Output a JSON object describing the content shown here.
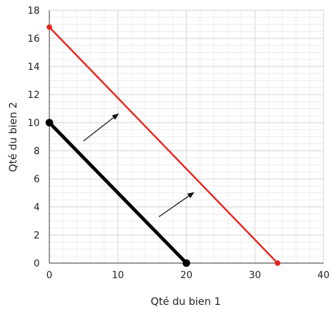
{
  "chart_data": {
    "type": "line",
    "xlabel": "Qté du bien 1",
    "ylabel": "Qté du bien 2",
    "xlim": [
      0,
      40
    ],
    "ylim": [
      0,
      18
    ],
    "x_ticks": [
      0,
      10,
      20,
      30,
      40
    ],
    "y_ticks": [
      0,
      2,
      4,
      6,
      8,
      10,
      12,
      14,
      16,
      18
    ],
    "grid": true,
    "series": [
      {
        "color": "#000000",
        "points": [
          [
            0,
            10
          ],
          [
            20,
            0
          ]
        ]
      },
      {
        "color": "#e8231c",
        "points": [
          [
            0,
            16.8
          ],
          [
            33.3,
            0
          ]
        ]
      }
    ],
    "annotations": [
      {
        "type": "arrow",
        "from": [
          5,
          8.7
        ],
        "to": [
          10,
          10.6
        ]
      },
      {
        "type": "arrow",
        "from": [
          16,
          3.3
        ],
        "to": [
          21,
          5
        ]
      }
    ]
  }
}
